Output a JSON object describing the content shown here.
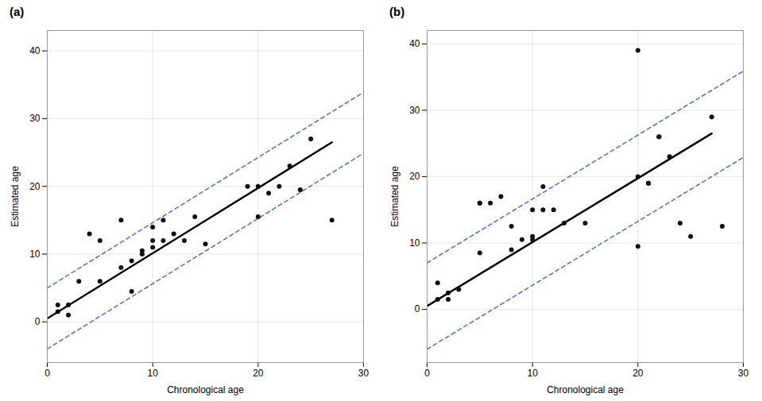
{
  "chart_data": [
    {
      "type": "scatter",
      "title": "(a)",
      "xlabel": "Chronological age",
      "ylabel": "Estimated age",
      "xlim": [
        0,
        30
      ],
      "ylim": [
        -6,
        43
      ],
      "xticks": [
        0,
        10,
        20,
        30
      ],
      "yticks": [
        0,
        10,
        20,
        30,
        40
      ],
      "grid": true,
      "series": [
        {
          "type": "line",
          "color": "#4472c4",
          "line_style": "dashed",
          "x": [
            0,
            30
          ],
          "values": [
            5.0,
            33.888888888888886
          ]
        },
        {
          "type": "line",
          "color": "#4472c4",
          "line_style": "dashed",
          "x": [
            0,
            30
          ],
          "values": [
            -4.0,
            24.88888888888889
          ]
        },
        {
          "type": "scatter",
          "color": "#111111",
          "marker": "circle",
          "x": [
            1,
            1,
            2,
            2,
            3,
            4,
            5,
            5,
            7,
            7,
            8,
            8,
            9,
            9,
            10,
            10,
            10,
            11,
            11,
            12,
            13,
            14,
            15,
            19,
            20,
            20,
            21,
            22,
            23,
            24,
            25,
            27
          ],
          "values": [
            2.5,
            1.5,
            2.5,
            1.0,
            6.0,
            13.0,
            6.0,
            12.0,
            15.0,
            8.0,
            4.5,
            9.0,
            10.5,
            10.0,
            14.0,
            12.0,
            11.0,
            15.0,
            12.0,
            13.0,
            12.0,
            15.5,
            11.5,
            20.0,
            20.0,
            15.5,
            19.0,
            20.0,
            23.0,
            19.5,
            27.0,
            15.0
          ]
        },
        {
          "type": "line",
          "color": "#000000",
          "line_style": "solid",
          "x": [
            0,
            27
          ],
          "values": [
            0.5,
            26.5
          ]
        }
      ]
    },
    {
      "type": "scatter",
      "title": "(b)",
      "xlabel": "Chronological age",
      "ylabel": "Estimated age",
      "xlim": [
        0,
        30
      ],
      "ylim": [
        -8,
        42
      ],
      "xticks": [
        0,
        10,
        20,
        30
      ],
      "yticks": [
        0,
        10,
        20,
        30,
        40
      ],
      "grid": true,
      "series": [
        {
          "type": "line",
          "color": "#4472c4",
          "line_style": "dashed",
          "x": [
            0,
            30
          ],
          "values": [
            7.0,
            35.888888888888886
          ]
        },
        {
          "type": "line",
          "color": "#4472c4",
          "line_style": "dashed",
          "x": [
            0,
            30
          ],
          "values": [
            -6.0,
            22.88888888888889
          ]
        },
        {
          "type": "scatter",
          "color": "#111111",
          "marker": "circle",
          "x": [
            1,
            1,
            2,
            2,
            3,
            5,
            5,
            5,
            6,
            7,
            8,
            8,
            9,
            10,
            10,
            10,
            11,
            11,
            12,
            13,
            15,
            20,
            20,
            20,
            21,
            21,
            22,
            22,
            23,
            24,
            25,
            27,
            28
          ],
          "values": [
            1.5,
            4.0,
            1.5,
            2.5,
            3.0,
            16.0,
            16.0,
            8.5,
            16.0,
            17.0,
            9.0,
            12.5,
            10.5,
            11.0,
            10.5,
            15.0,
            15.0,
            18.5,
            15.0,
            13.0,
            13.0,
            39.0,
            20.0,
            9.5,
            19.0,
            19.0,
            26.0,
            26.0,
            23.0,
            13.0,
            11.0,
            29.0,
            12.5
          ]
        },
        {
          "type": "line",
          "color": "#000000",
          "line_style": "solid",
          "x": [
            0,
            27
          ],
          "values": [
            0.5,
            26.5
          ]
        }
      ]
    }
  ]
}
